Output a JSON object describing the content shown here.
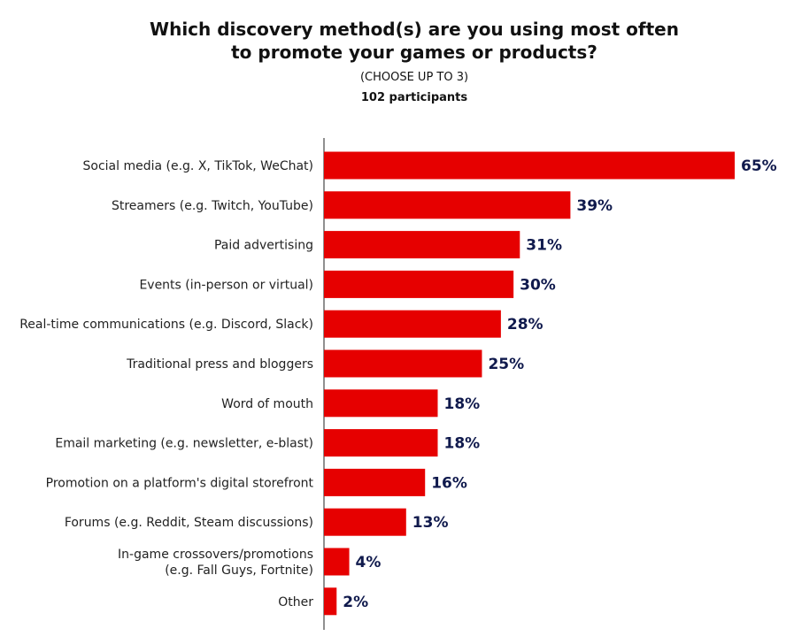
{
  "header": {
    "title_line1": "Which discovery method(s) are you using most often",
    "title_line2": "to promote your games or products?",
    "subtitle": "(CHOOSE UP TO 3)",
    "participants": "102 participants"
  },
  "colors": {
    "bar": "#e60000",
    "value_label": "#101a4d",
    "axis": "#222222"
  },
  "chart_data": {
    "type": "bar",
    "orientation": "horizontal",
    "title": "Which discovery method(s) are you using most often to promote your games or products?",
    "subtitle": "(CHOOSE UP TO 3)",
    "categories": [
      [
        "Social media (e.g. X, TikTok, WeChat)"
      ],
      [
        "Streamers (e.g. Twitch, YouTube)"
      ],
      [
        "Paid advertising"
      ],
      [
        "Events (in-person or virtual)"
      ],
      [
        "Real-time communications (e.g. Discord, Slack)"
      ],
      [
        "Traditional press and bloggers"
      ],
      [
        "Word of mouth"
      ],
      [
        "Email marketing (e.g. newsletter, e-blast)"
      ],
      [
        "Promotion on a platform's digital storefront"
      ],
      [
        "Forums (e.g. Reddit, Steam discussions)"
      ],
      [
        "In-game crossovers/promotions",
        "(e.g. Fall Guys, Fortnite)"
      ],
      [
        "Other"
      ]
    ],
    "values": [
      65,
      39,
      31,
      30,
      28,
      25,
      18,
      18,
      16,
      13,
      4,
      2
    ],
    "value_labels": [
      "65%",
      "39%",
      "31%",
      "30%",
      "28%",
      "25%",
      "18%",
      "18%",
      "16%",
      "13%",
      "4%",
      "2%"
    ],
    "xlim": [
      0,
      65
    ],
    "grid": false,
    "legend": "none"
  }
}
